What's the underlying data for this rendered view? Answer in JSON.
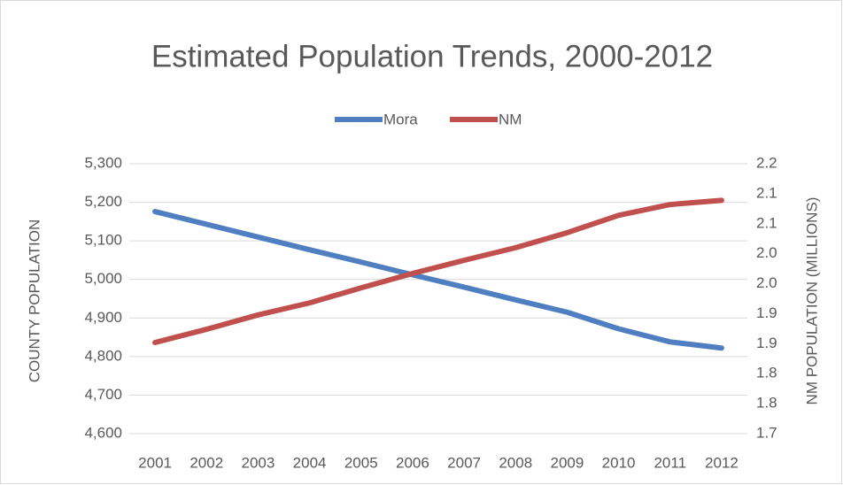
{
  "chart_data": {
    "type": "line",
    "title": "Estimated Population Trends, 2000-2012",
    "y_label": "COUNTY POPULATION",
    "y2_label": "NM POPULATION (MILLIONS)",
    "categories": [
      "2001",
      "2002",
      "2003",
      "2004",
      "2005",
      "2006",
      "2007",
      "2008",
      "2009",
      "2010",
      "2011",
      "2012"
    ],
    "series": [
      {
        "name": "Mora",
        "color": "#4f7fc0",
        "values": [
          5176,
          5143,
          5110,
          5077,
          5045,
          5012,
          4980,
          4947,
          4915,
          4872,
          4838,
          4822
        ]
      },
      {
        "name": "NM",
        "color": "#c0504d",
        "axis": "y2",
        "values": [
          1.852,
          1.874,
          1.898,
          1.918,
          1.943,
          1.967,
          1.989,
          2.01,
          2.035,
          2.064,
          2.082,
          2.089
        ]
      }
    ],
    "ylim": [
      4600,
      5300
    ],
    "yticks": [
      {
        "value": 4600,
        "label": "4,600"
      },
      {
        "value": 4700,
        "label": "4,700"
      },
      {
        "value": 4800,
        "label": "4,800"
      },
      {
        "value": 4900,
        "label": "4,900"
      },
      {
        "value": 5000,
        "label": "5,000"
      },
      {
        "value": 5100,
        "label": "5,100"
      },
      {
        "value": 5200,
        "label": "5,200"
      },
      {
        "value": 5300,
        "label": "5,300"
      }
    ],
    "y2lim": [
      1.7,
      2.15
    ],
    "y2ticks": [
      {
        "value": 1.7,
        "label": "1.7"
      },
      {
        "value": 1.75,
        "label": "1.8"
      },
      {
        "value": 1.8,
        "label": "1.8"
      },
      {
        "value": 1.85,
        "label": "1.9"
      },
      {
        "value": 1.9,
        "label": "1.9"
      },
      {
        "value": 1.95,
        "label": "2.0"
      },
      {
        "value": 2.0,
        "label": "2.0"
      },
      {
        "value": 2.05,
        "label": "2.1"
      },
      {
        "value": 2.1,
        "label": "2.1"
      },
      {
        "value": 2.15,
        "label": "2.2"
      }
    ],
    "grid": true,
    "legend": "top"
  }
}
